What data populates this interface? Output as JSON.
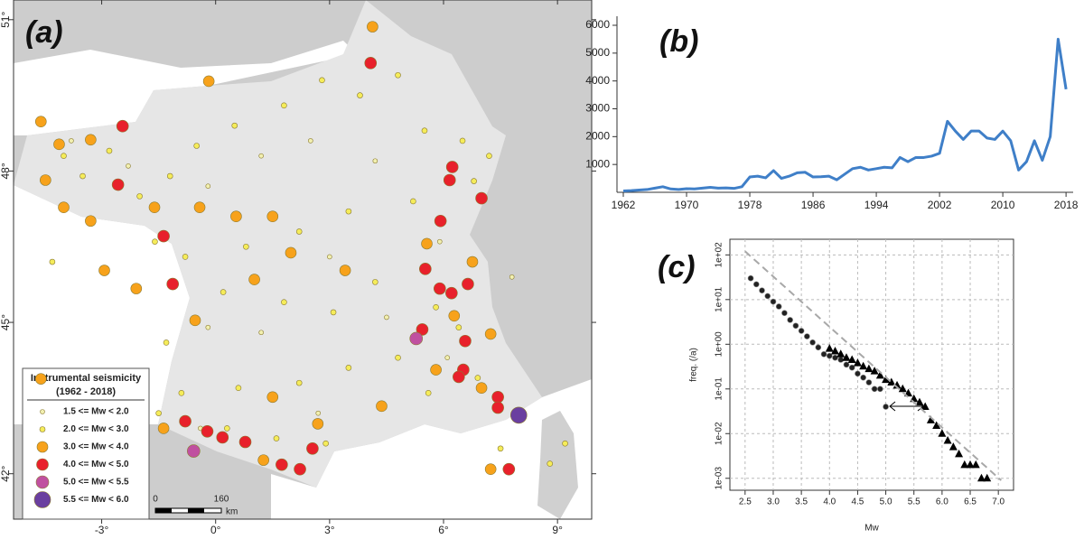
{
  "chart_data": [
    {
      "type": "scatter",
      "title": "(a)",
      "legend_title": "Instrumental seismicity",
      "legend_subtitle": "(1962 - 2018)",
      "legend": "bottom-left",
      "scalebar": {
        "start": 0,
        "end": 160,
        "unit": "km"
      },
      "xlim": [
        -5.32,
        9.9
      ],
      "ylim": [
        41.1,
        51.39
      ],
      "xticks": [
        {
          "value": -3,
          "label": "-3°"
        },
        {
          "value": 0,
          "label": "0°"
        },
        {
          "value": 3,
          "label": "3°"
        },
        {
          "value": 6,
          "label": "6°"
        },
        {
          "value": 9,
          "label": "9°"
        }
      ],
      "yticks": [
        {
          "value": 42,
          "label": "42°"
        },
        {
          "value": 45,
          "label": "45°"
        },
        {
          "value": 48,
          "label": "48°"
        },
        {
          "value": 51,
          "label": "51°"
        }
      ],
      "series": [
        {
          "name": "1.5 <= Mw < 2.0",
          "color": "#f2f0b0",
          "x": [
            -3.8,
            -2.3,
            -0.2,
            1.2,
            2.5,
            4.2,
            3,
            1.2,
            -0.2,
            4.5,
            5.9,
            6.1,
            2.7,
            -0.4,
            7.8
          ],
          "values": [
            48.6,
            48.1,
            47.7,
            48.3,
            48.6,
            48.2,
            46.3,
            44.8,
            44.9,
            45.1,
            46.6,
            44.3,
            43.2,
            42.9,
            45.9
          ]
        },
        {
          "name": "2.0 <= Mw < 3.0",
          "color": "#f5ec5a",
          "x": [
            -4,
            -3.5,
            -2.8,
            -2,
            -1.2,
            -0.5,
            0.5,
            1.8,
            2.8,
            3.8,
            4.8,
            5.5,
            6.5,
            7.2,
            6.8,
            5.2,
            3.5,
            2.2,
            0.8,
            -0.8,
            -1.6,
            0.2,
            1.8,
            3.1,
            4.2,
            5.8,
            6.4,
            4.8,
            3.5,
            2.2,
            0.6,
            -0.9,
            -1.3,
            5.6,
            6.9,
            -1.5,
            0.3,
            1.6,
            2.9,
            8.8,
            9.2,
            -4.3,
            7.5
          ],
          "values": [
            48.3,
            47.9,
            48.4,
            47.5,
            47.9,
            48.5,
            48.9,
            49.3,
            49.8,
            49.5,
            49.9,
            48.8,
            48.6,
            48.3,
            47.8,
            47.4,
            47.2,
            46.8,
            46.5,
            46.3,
            46.6,
            45.6,
            45.4,
            45.2,
            45.8,
            45.3,
            44.9,
            44.3,
            44.1,
            43.8,
            43.7,
            43.6,
            44.6,
            43.6,
            43.9,
            43.2,
            42.9,
            42.7,
            42.6,
            42.2,
            42.6,
            46.2,
            42.5
          ]
        },
        {
          "name": "3.0 <= Mw <  4.0",
          "color": "#f7a21b",
          "x": [
            -4.6,
            -4.12,
            -3.29,
            -4.48,
            -4.0,
            -3.29,
            -2.93,
            -1.61,
            -0.42,
            0.54,
            1.5,
            1.98,
            1.02,
            -2.09,
            -0.54,
            3.41,
            1.5,
            2.69,
            4.37,
            5.56,
            6.76,
            6.28,
            7.24,
            5.8,
            7.0,
            -1.37,
            1.26,
            4.13,
            -4.6,
            7.24,
            -0.18
          ],
          "values": [
            48.98,
            48.53,
            48.62,
            47.82,
            47.28,
            47.01,
            46.03,
            47.28,
            47.28,
            47.1,
            47.1,
            46.38,
            45.85,
            45.67,
            45.04,
            46.03,
            43.52,
            42.99,
            43.34,
            46.56,
            46.2,
            45.13,
            44.77,
            44.06,
            43.7,
            42.9,
            42.27,
            50.86,
            43.88,
            42.09,
            49.78
          ]
        },
        {
          "name": "4.0 <= Mw < 5.0",
          "color": "#e8212b",
          "x": [
            4.08,
            -2.45,
            6.23,
            6.16,
            7.0,
            -2.57,
            -1.37,
            5.92,
            5.52,
            -1.13,
            5.9,
            6.21,
            6.64,
            5.44,
            6.57,
            6.52,
            6.4,
            7.43,
            7.43,
            -0.22,
            0.18,
            0.78,
            1.74,
            2.55,
            2.22,
            7.72,
            -0.8
          ],
          "values": [
            50.14,
            48.89,
            48.08,
            47.82,
            47.46,
            47.73,
            46.71,
            47.01,
            46.06,
            45.76,
            45.67,
            45.58,
            45.76,
            44.86,
            44.63,
            44.06,
            43.92,
            43.52,
            43.31,
            42.84,
            42.72,
            42.63,
            42.18,
            42.5,
            42.09,
            42.09,
            43.04
          ]
        },
        {
          "name": "5.0 <= Mw < 5.5",
          "color": "#c050a0",
          "x": [
            5.28,
            -0.58
          ],
          "values": [
            44.68,
            42.45
          ]
        },
        {
          "name": "5.5 <= Mw < 6.0",
          "color": "#6a3fa0",
          "x": [
            7.98
          ],
          "values": [
            43.16
          ]
        }
      ]
    },
    {
      "type": "line",
      "title": "(b)",
      "xlim": [
        1961.2,
        2018.9
      ],
      "ylim": [
        0,
        6000
      ],
      "xticks": [
        1962,
        1970,
        1978,
        1986,
        1994,
        2002,
        2010,
        2018
      ],
      "yticks": [
        1000,
        2000,
        3000,
        4000,
        5000,
        6000
      ],
      "x": [
        1962,
        1963,
        1964,
        1965,
        1966,
        1967,
        1968,
        1969,
        1970,
        1971,
        1972,
        1973,
        1974,
        1975,
        1976,
        1977,
        1978,
        1979,
        1980,
        1981,
        1982,
        1983,
        1984,
        1985,
        1986,
        1987,
        1988,
        1989,
        1990,
        1991,
        1992,
        1993,
        1994,
        1995,
        1996,
        1997,
        1998,
        1999,
        2000,
        2001,
        2002,
        2003,
        2004,
        2005,
        2006,
        2007,
        2008,
        2009,
        2010,
        2011,
        2012,
        2013,
        2014,
        2015,
        2016,
        2017,
        2018
      ],
      "series": [
        {
          "color": "#3f7fc8",
          "values": [
            50,
            60,
            80,
            100,
            150,
            200,
            120,
            100,
            130,
            120,
            150,
            180,
            150,
            160,
            140,
            200,
            550,
            580,
            520,
            780,
            500,
            580,
            700,
            720,
            550,
            560,
            580,
            450,
            650,
            850,
            900,
            800,
            850,
            900,
            880,
            1250,
            1100,
            1250,
            1250,
            1300,
            1400,
            2550,
            2200,
            1900,
            2200,
            2200,
            1950,
            1900,
            2200,
            1850,
            800,
            1100,
            1850,
            1150,
            2000,
            5500,
            3700
          ]
        }
      ]
    },
    {
      "type": "scatter",
      "title": "(c)",
      "xlabel": "Mw",
      "ylabel": "freq. (/a)",
      "ylog": true,
      "grid": true,
      "xlim": [
        2.23,
        7.27
      ],
      "ylim": [
        0.00054,
        224
      ],
      "xticks": [
        2.5,
        {
          "value": 3,
          "label": "3.0"
        },
        3.5,
        {
          "value": 4,
          "label": "4.0"
        },
        4.5,
        {
          "value": 5,
          "label": "5.0"
        },
        5.5,
        {
          "value": 6,
          "label": "6.0"
        },
        6.5,
        {
          "value": 7,
          "label": "7.0"
        }
      ],
      "yticks": [
        {
          "value": 0.001,
          "label": "1e-03"
        },
        {
          "value": 0.01,
          "label": "1e-02"
        },
        {
          "value": 0.1,
          "label": "1e-01"
        },
        {
          "value": 1,
          "label": "1e+00"
        },
        {
          "value": 10,
          "label": "1e+01"
        },
        {
          "value": 100,
          "label": "1e+02"
        }
      ],
      "series": [
        {
          "color": "#222222",
          "marker": "circle",
          "x": [
            2.6,
            2.7,
            2.8,
            2.9,
            3.0,
            3.1,
            3.2,
            3.3,
            3.4,
            3.5,
            3.6,
            3.7,
            3.8,
            3.9,
            4.0,
            4.1,
            4.2,
            4.3,
            4.4,
            4.5,
            4.6,
            4.7,
            4.8,
            4.9,
            5.0
          ],
          "values": [
            30,
            22,
            16,
            12,
            9,
            7,
            5,
            3.5,
            2.6,
            2,
            1.5,
            1.1,
            0.85,
            0.6,
            0.55,
            0.5,
            0.45,
            0.35,
            0.3,
            0.22,
            0.18,
            0.14,
            0.1,
            0.1,
            0.04
          ]
        },
        {
          "color": "#000000",
          "marker": "triangle",
          "x": [
            4.0,
            4.1,
            4.2,
            4.3,
            4.4,
            4.5,
            4.6,
            4.7,
            4.8,
            4.9,
            5.0,
            5.1,
            5.2,
            5.3,
            5.4,
            5.5,
            5.6,
            5.7,
            5.8,
            5.9,
            6.0,
            6.1,
            6.2,
            6.3,
            6.4,
            6.5,
            6.6,
            6.7,
            6.8
          ],
          "values": [
            0.8,
            0.7,
            0.6,
            0.5,
            0.45,
            0.38,
            0.32,
            0.28,
            0.25,
            0.2,
            0.16,
            0.14,
            0.12,
            0.1,
            0.08,
            0.06,
            0.05,
            0.04,
            0.02,
            0.015,
            0.01,
            0.007,
            0.005,
            0.0035,
            0.002,
            0.002,
            0.002,
            0.001,
            0.001
          ]
        },
        {
          "color": "#a8a8a8",
          "marker": "dashed-line",
          "x": [
            2.5,
            7.05
          ],
          "values": [
            120,
            0.0009
          ]
        }
      ]
    }
  ]
}
